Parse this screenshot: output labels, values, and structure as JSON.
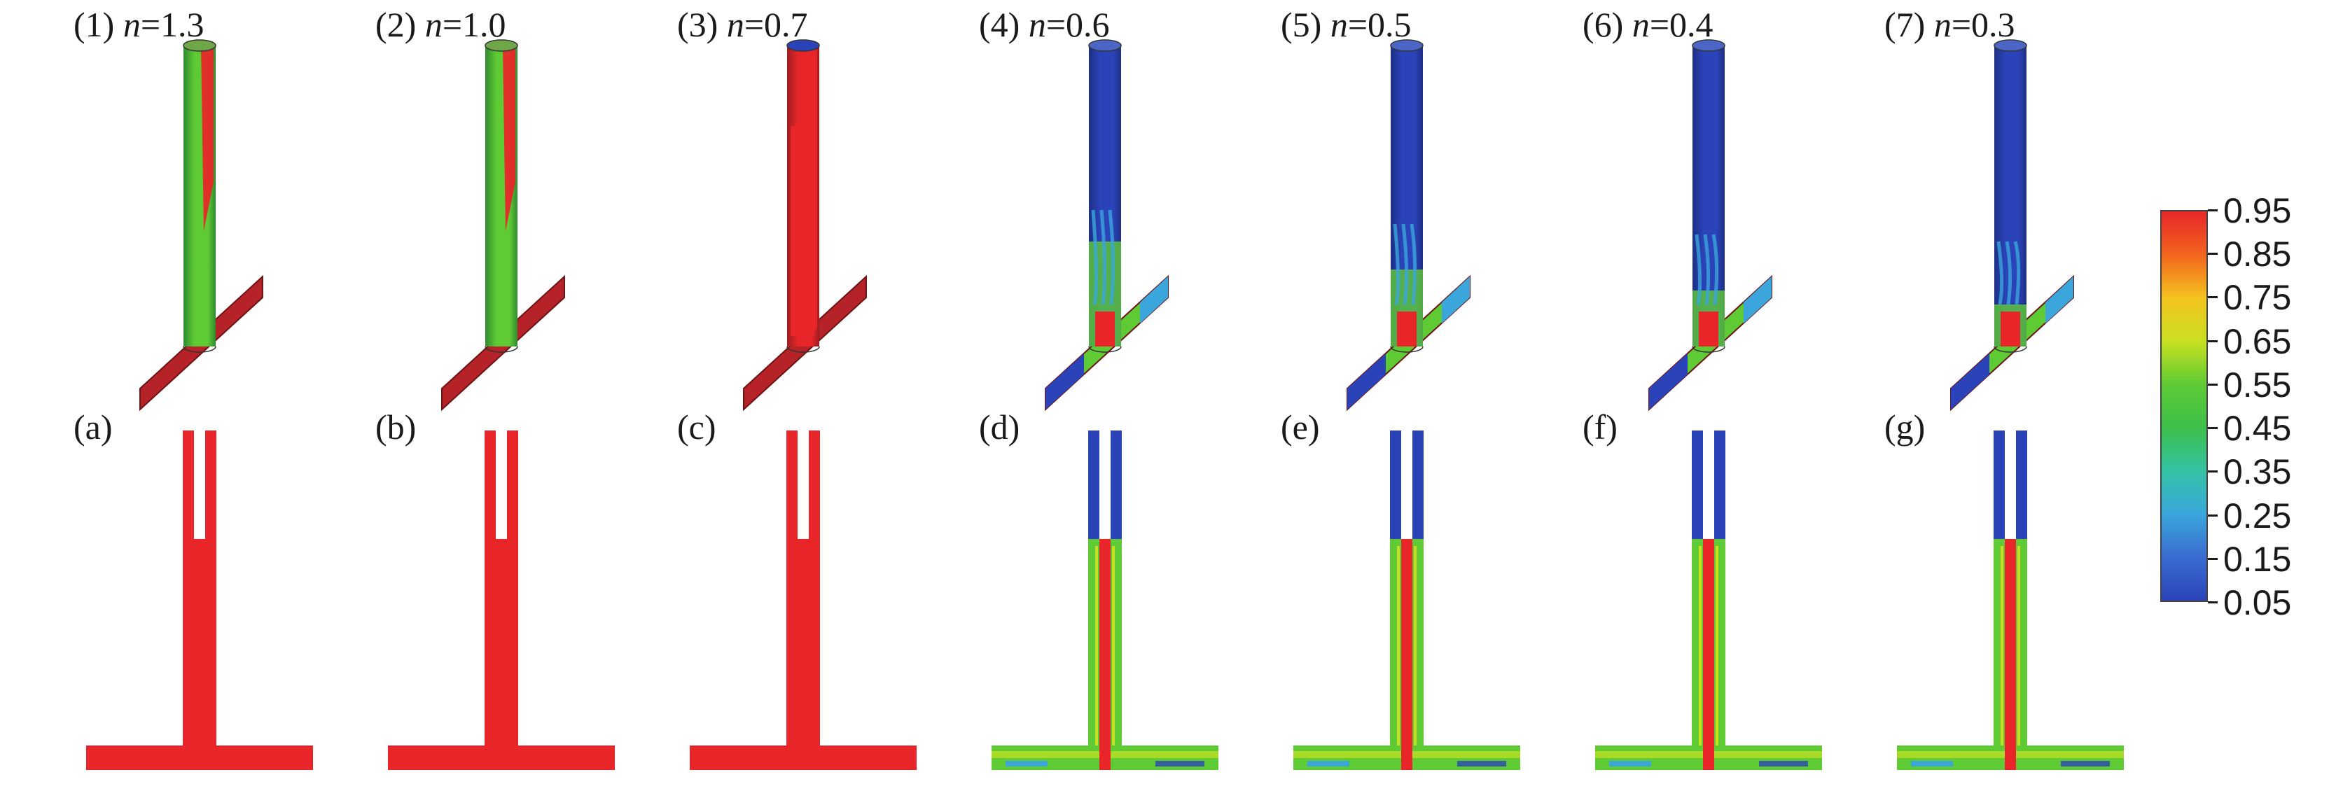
{
  "panels": [
    {
      "number_label": "(1)",
      "n_value": "1.3",
      "letter_label": "(a)",
      "mode": "red"
    },
    {
      "number_label": "(2)",
      "n_value": "1.0",
      "letter_label": "(b)",
      "mode": "red"
    },
    {
      "number_label": "(3)",
      "n_value": "0.7",
      "letter_label": "(c)",
      "mode": "red"
    },
    {
      "number_label": "(4)",
      "n_value": "0.6",
      "letter_label": "(d)",
      "mode": "blue"
    },
    {
      "number_label": "(5)",
      "n_value": "0.5",
      "letter_label": "(e)",
      "mode": "blue"
    },
    {
      "number_label": "(6)",
      "n_value": "0.4",
      "letter_label": "(f)",
      "mode": "blue"
    },
    {
      "number_label": "(7)",
      "n_value": "0.3",
      "letter_label": "(g)",
      "mode": "blue"
    }
  ],
  "n_symbol": "n",
  "equals_sign": "=",
  "colorbar": {
    "ticks": [
      "0.95",
      "0.85",
      "0.75",
      "0.65",
      "0.55",
      "0.45",
      "0.35",
      "0.25",
      "0.15",
      "0.05"
    ],
    "colors": [
      "#e8262a",
      "#f2641d",
      "#f5c31e",
      "#c8e021",
      "#5fcb34",
      "#3cbf4a",
      "#34c3a4",
      "#3aa6dc",
      "#3a6cd0",
      "#2a43b8"
    ]
  }
}
